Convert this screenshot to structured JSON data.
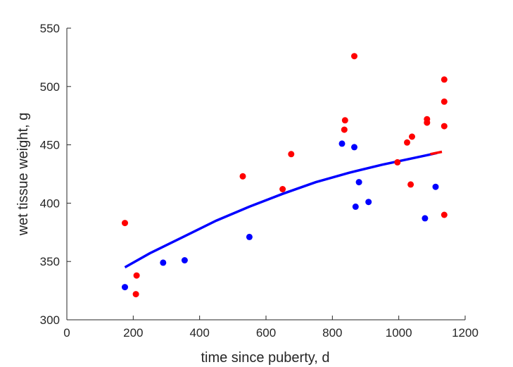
{
  "chart_data": {
    "type": "scatter",
    "title": "",
    "xlabel": "time since puberty, d",
    "ylabel": "wet tissue weight, g",
    "xlim": [
      0,
      1200
    ],
    "ylim": [
      300,
      550
    ],
    "xticks": [
      0,
      200,
      400,
      600,
      800,
      1000,
      1200
    ],
    "yticks": [
      300,
      350,
      400,
      450,
      500,
      550
    ],
    "xtick_labels": [
      "0",
      "200",
      "400",
      "600",
      "800",
      "1000",
      "1200"
    ],
    "ytick_labels": [
      "300",
      "350",
      "400",
      "450",
      "500",
      "550"
    ],
    "grid": false,
    "series": [
      {
        "color": "#ff0000",
        "marker": "circle",
        "points": [
          [
            175,
            383
          ],
          [
            210,
            338
          ],
          [
            208,
            322
          ],
          [
            530,
            423
          ],
          [
            650,
            412
          ],
          [
            676,
            442
          ],
          [
            838,
            471
          ],
          [
            836,
            463
          ],
          [
            866,
            526
          ],
          [
            996,
            435
          ],
          [
            1025,
            452
          ],
          [
            1036,
            416
          ],
          [
            1040,
            457
          ],
          [
            1085,
            472
          ],
          [
            1085,
            469
          ],
          [
            1137,
            506
          ],
          [
            1137,
            487
          ],
          [
            1137,
            466
          ],
          [
            1137,
            390
          ]
        ]
      },
      {
        "color": "#0000ff",
        "marker": "circle",
        "points": [
          [
            175,
            328
          ],
          [
            290,
            349
          ],
          [
            355,
            351
          ],
          [
            550,
            371
          ],
          [
            829,
            451
          ],
          [
            866,
            448
          ],
          [
            870,
            397
          ],
          [
            880,
            418
          ],
          [
            909,
            401
          ],
          [
            1079,
            387
          ],
          [
            1111,
            414
          ]
        ]
      }
    ],
    "fits": [
      {
        "color": "#0000ff",
        "style": "solid",
        "points": [
          [
            175,
            345
          ],
          [
            250,
            357
          ],
          [
            350,
            371
          ],
          [
            450,
            385
          ],
          [
            550,
            397
          ],
          [
            650,
            408
          ],
          [
            750,
            418
          ],
          [
            850,
            426
          ],
          [
            950,
            433
          ],
          [
            1050,
            439
          ],
          [
            1100,
            442
          ],
          [
            1115,
            443
          ]
        ]
      },
      {
        "color": "#ff0000",
        "style": "solid",
        "points": [
          [
            1095,
            442
          ],
          [
            1130,
            444
          ]
        ]
      }
    ]
  }
}
